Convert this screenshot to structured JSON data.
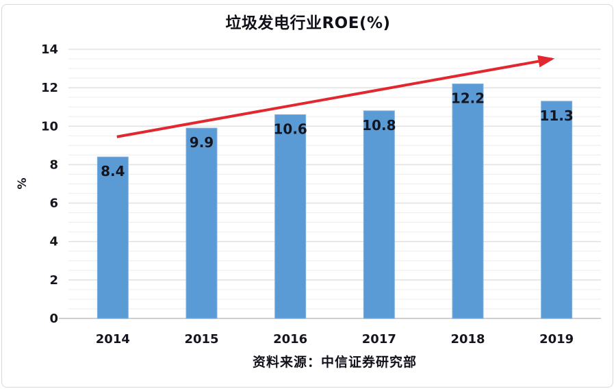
{
  "chart_data": {
    "type": "bar",
    "title": "垃圾发电行业ROE(%)",
    "categories": [
      "2014",
      "2015",
      "2016",
      "2017",
      "2018",
      "2019"
    ],
    "values": [
      8.4,
      9.9,
      10.6,
      10.8,
      12.2,
      11.3
    ],
    "data_labels": [
      "8.4",
      "9.9",
      "10.6",
      "10.8",
      "12.2",
      "11.3"
    ],
    "xlabel": "",
    "ylabel": "%",
    "ylim": [
      0,
      14
    ],
    "y_tick_step": 2,
    "y_minor_step": 0.5,
    "y_tick_labels": [
      "0",
      "2",
      "4",
      "6",
      "8",
      "10",
      "12",
      "14"
    ],
    "grid": "horizontal-minor-and-major",
    "legend": "none",
    "source": "资料来源：中信证券研究部",
    "colors": {
      "bar": "#5b9bd5",
      "bar_edge": "#7fb2e0",
      "data_label": "#15151f",
      "axis_text": "#15151f",
      "gridline_minor": "#efefef",
      "gridline_major": "#e2e2e2",
      "baseline": "#c8c8c8",
      "arrow": "#e1282e",
      "frame_border": "#d9d9d9"
    },
    "trend_arrow": {
      "start_value": 9.45,
      "end_value": 13.5,
      "start_x_frac": 0.091,
      "end_x_frac": 0.908
    }
  }
}
